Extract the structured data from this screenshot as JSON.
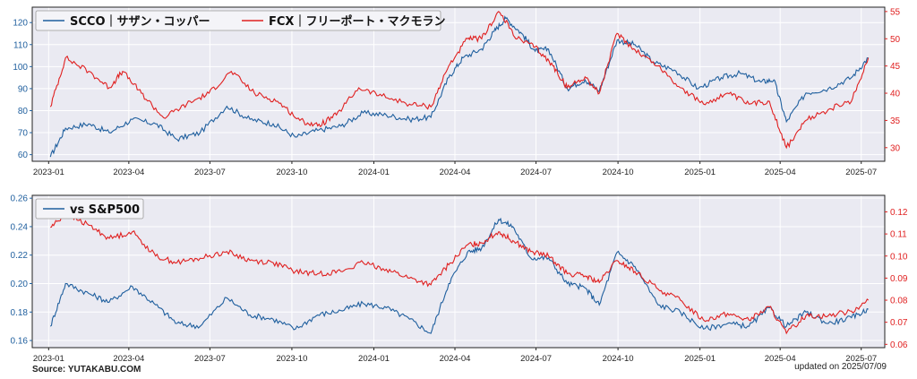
{
  "colors": {
    "left_series": "#1f5f9e",
    "right_series": "#e02020",
    "plot_bg": "#eaeaf2",
    "grid": "#ffffff"
  },
  "footer": {
    "source": "Source: YUTAKABU.COM",
    "updated": "updated on 2025/07/09"
  },
  "chart_data": [
    {
      "type": "line",
      "legend": {
        "placement": "top-left",
        "entries": [
          "SCCO｜サザン・コッパー",
          "FCX｜フリーポート・マクモラン"
        ]
      },
      "grid": true,
      "x_ticks": [
        "2023-01",
        "2023-04",
        "2023-07",
        "2023-10",
        "2024-01",
        "2024-04",
        "2024-07",
        "2024-10",
        "2025-01",
        "2025-04",
        "2025-07"
      ],
      "x_range": [
        "2023-01-01",
        "2025-07-09"
      ],
      "left_axis": {
        "ylim": [
          57,
          127
        ],
        "ticks": [
          60,
          70,
          80,
          90,
          100,
          110,
          120
        ]
      },
      "right_axis": {
        "ylim": [
          27.5,
          55.8
        ],
        "ticks": [
          30,
          35,
          40,
          45,
          50,
          55
        ]
      },
      "series": [
        {
          "name": "SCCO｜サザン・コッパー",
          "axis": "left",
          "points": [
            [
              "2023-01-03",
              59
            ],
            [
              "2023-01-20",
              72
            ],
            [
              "2023-02-15",
              74
            ],
            [
              "2023-03-10",
              70
            ],
            [
              "2023-04-05",
              76
            ],
            [
              "2023-05-01",
              74
            ],
            [
              "2023-05-25",
              67
            ],
            [
              "2023-06-20",
              70
            ],
            [
              "2023-07-20",
              82
            ],
            [
              "2023-08-15",
              76
            ],
            [
              "2023-09-10",
              74
            ],
            [
              "2023-10-05",
              68
            ],
            [
              "2023-10-30",
              71
            ],
            [
              "2023-11-25",
              73
            ],
            [
              "2023-12-20",
              79
            ],
            [
              "2024-01-15",
              78
            ],
            [
              "2024-02-10",
              76
            ],
            [
              "2024-03-05",
              77
            ],
            [
              "2024-03-25",
              95
            ],
            [
              "2024-04-10",
              104
            ],
            [
              "2024-05-01",
              108
            ],
            [
              "2024-05-15",
              116
            ],
            [
              "2024-05-28",
              122
            ],
            [
              "2024-06-15",
              115
            ],
            [
              "2024-06-30",
              107
            ],
            [
              "2024-07-15",
              108
            ],
            [
              "2024-08-05",
              90
            ],
            [
              "2024-08-25",
              94
            ],
            [
              "2024-09-10",
              89
            ],
            [
              "2024-09-30",
              112
            ],
            [
              "2024-10-20",
              110
            ],
            [
              "2024-11-10",
              102
            ],
            [
              "2024-12-05",
              98
            ],
            [
              "2024-12-30",
              90
            ],
            [
              "2025-01-25",
              95
            ],
            [
              "2025-02-15",
              97
            ],
            [
              "2025-03-10",
              93
            ],
            [
              "2025-03-25",
              94
            ],
            [
              "2025-04-08",
              75
            ],
            [
              "2025-04-30",
              88
            ],
            [
              "2025-05-25",
              90
            ],
            [
              "2025-06-20",
              95
            ],
            [
              "2025-07-09",
              104
            ]
          ]
        },
        {
          "name": "FCX｜フリーポート・マクモラン",
          "axis": "right",
          "points": [
            [
              "2023-01-03",
              37.5
            ],
            [
              "2023-01-20",
              46.5
            ],
            [
              "2023-02-15",
              44
            ],
            [
              "2023-03-10",
              41
            ],
            [
              "2023-03-25",
              44
            ],
            [
              "2023-04-15",
              40
            ],
            [
              "2023-05-10",
              35.5
            ],
            [
              "2023-06-05",
              38
            ],
            [
              "2023-06-30",
              40
            ],
            [
              "2023-07-25",
              44
            ],
            [
              "2023-08-20",
              40
            ],
            [
              "2023-09-15",
              38.5
            ],
            [
              "2023-10-10",
              35
            ],
            [
              "2023-10-30",
              34
            ],
            [
              "2023-11-20",
              36
            ],
            [
              "2023-12-15",
              41
            ],
            [
              "2024-01-10",
              39.5
            ],
            [
              "2024-02-10",
              38
            ],
            [
              "2024-03-05",
              37.5
            ],
            [
              "2024-03-25",
              45
            ],
            [
              "2024-04-15",
              50
            ],
            [
              "2024-05-01",
              50
            ],
            [
              "2024-05-20",
              55
            ],
            [
              "2024-06-10",
              50
            ],
            [
              "2024-06-30",
              48.5
            ],
            [
              "2024-07-20",
              45
            ],
            [
              "2024-08-05",
              41
            ],
            [
              "2024-08-25",
              43
            ],
            [
              "2024-09-10",
              40
            ],
            [
              "2024-09-30",
              51
            ],
            [
              "2024-10-20",
              48
            ],
            [
              "2024-11-15",
              45
            ],
            [
              "2024-12-10",
              41
            ],
            [
              "2025-01-05",
              38
            ],
            [
              "2025-02-01",
              40
            ],
            [
              "2025-02-25",
              38
            ],
            [
              "2025-03-20",
              38.5
            ],
            [
              "2025-04-08",
              30
            ],
            [
              "2025-04-30",
              35
            ],
            [
              "2025-05-25",
              37
            ],
            [
              "2025-06-20",
              38.5
            ],
            [
              "2025-07-09",
              46.5
            ]
          ]
        }
      ]
    },
    {
      "type": "line",
      "legend": {
        "placement": "top-left",
        "entries": [
          "vs S&P500"
        ]
      },
      "grid": true,
      "x_ticks": [
        "2023-01",
        "2023-04",
        "2023-07",
        "2023-10",
        "2024-01",
        "2024-04",
        "2024-07",
        "2024-10",
        "2025-01",
        "2025-04",
        "2025-07"
      ],
      "x_range": [
        "2023-01-01",
        "2025-07-09"
      ],
      "left_axis": {
        "ylim": [
          0.155,
          0.262
        ],
        "ticks": [
          0.16,
          0.18,
          0.2,
          0.22,
          0.24,
          0.26
        ]
      },
      "right_axis": {
        "ylim": [
          0.0585,
          0.1275
        ],
        "ticks": [
          0.06,
          0.07,
          0.08,
          0.09,
          0.1,
          0.11,
          0.12
        ]
      },
      "series": [
        {
          "name": "vs S&P500",
          "axis": "left",
          "points": [
            [
              "2023-01-03",
              0.17
            ],
            [
              "2023-01-20",
              0.2
            ],
            [
              "2023-02-15",
              0.193
            ],
            [
              "2023-03-10",
              0.187
            ],
            [
              "2023-04-05",
              0.198
            ],
            [
              "2023-05-01",
              0.185
            ],
            [
              "2023-05-25",
              0.172
            ],
            [
              "2023-06-20",
              0.17
            ],
            [
              "2023-07-20",
              0.19
            ],
            [
              "2023-08-15",
              0.178
            ],
            [
              "2023-09-10",
              0.175
            ],
            [
              "2023-10-05",
              0.168
            ],
            [
              "2023-10-30",
              0.178
            ],
            [
              "2023-11-25",
              0.181
            ],
            [
              "2023-12-20",
              0.186
            ],
            [
              "2024-01-15",
              0.183
            ],
            [
              "2024-02-10",
              0.175
            ],
            [
              "2024-03-05",
              0.165
            ],
            [
              "2024-03-25",
              0.2
            ],
            [
              "2024-04-15",
              0.222
            ],
            [
              "2024-05-01",
              0.225
            ],
            [
              "2024-05-20",
              0.245
            ],
            [
              "2024-06-05",
              0.24
            ],
            [
              "2024-06-25",
              0.218
            ],
            [
              "2024-07-15",
              0.218
            ],
            [
              "2024-08-05",
              0.2
            ],
            [
              "2024-08-25",
              0.197
            ],
            [
              "2024-09-10",
              0.185
            ],
            [
              "2024-09-30",
              0.222
            ],
            [
              "2024-10-20",
              0.212
            ],
            [
              "2024-11-15",
              0.185
            ],
            [
              "2024-12-10",
              0.18
            ],
            [
              "2025-01-05",
              0.168
            ],
            [
              "2025-02-01",
              0.172
            ],
            [
              "2025-02-25",
              0.17
            ],
            [
              "2025-03-20",
              0.183
            ],
            [
              "2025-04-08",
              0.17
            ],
            [
              "2025-04-30",
              0.18
            ],
            [
              "2025-05-25",
              0.172
            ],
            [
              "2025-06-20",
              0.176
            ],
            [
              "2025-07-09",
              0.182
            ]
          ]
        },
        {
          "name": "",
          "axis": "right",
          "points": [
            [
              "2023-01-03",
              0.113
            ],
            [
              "2023-01-20",
              0.119
            ],
            [
              "2023-02-15",
              0.114
            ],
            [
              "2023-03-10",
              0.108
            ],
            [
              "2023-04-05",
              0.111
            ],
            [
              "2023-05-01",
              0.1
            ],
            [
              "2023-05-25",
              0.097
            ],
            [
              "2023-06-20",
              0.099
            ],
            [
              "2023-07-20",
              0.102
            ],
            [
              "2023-08-15",
              0.098
            ],
            [
              "2023-09-10",
              0.097
            ],
            [
              "2023-10-05",
              0.093
            ],
            [
              "2023-10-30",
              0.092
            ],
            [
              "2023-11-25",
              0.093
            ],
            [
              "2023-12-20",
              0.097
            ],
            [
              "2024-01-15",
              0.094
            ],
            [
              "2024-02-10",
              0.09
            ],
            [
              "2024-03-05",
              0.087
            ],
            [
              "2024-03-25",
              0.096
            ],
            [
              "2024-04-15",
              0.105
            ],
            [
              "2024-05-01",
              0.106
            ],
            [
              "2024-05-20",
              0.111
            ],
            [
              "2024-06-05",
              0.107
            ],
            [
              "2024-06-25",
              0.102
            ],
            [
              "2024-07-15",
              0.1
            ],
            [
              "2024-08-05",
              0.092
            ],
            [
              "2024-08-25",
              0.091
            ],
            [
              "2024-09-10",
              0.088
            ],
            [
              "2024-09-30",
              0.098
            ],
            [
              "2024-10-20",
              0.093
            ],
            [
              "2024-11-15",
              0.085
            ],
            [
              "2024-12-10",
              0.08
            ],
            [
              "2025-01-05",
              0.071
            ],
            [
              "2025-02-01",
              0.074
            ],
            [
              "2025-02-25",
              0.071
            ],
            [
              "2025-03-20",
              0.077
            ],
            [
              "2025-04-08",
              0.065
            ],
            [
              "2025-04-30",
              0.073
            ],
            [
              "2025-05-25",
              0.073
            ],
            [
              "2025-06-20",
              0.075
            ],
            [
              "2025-07-09",
              0.08
            ]
          ]
        }
      ]
    }
  ]
}
